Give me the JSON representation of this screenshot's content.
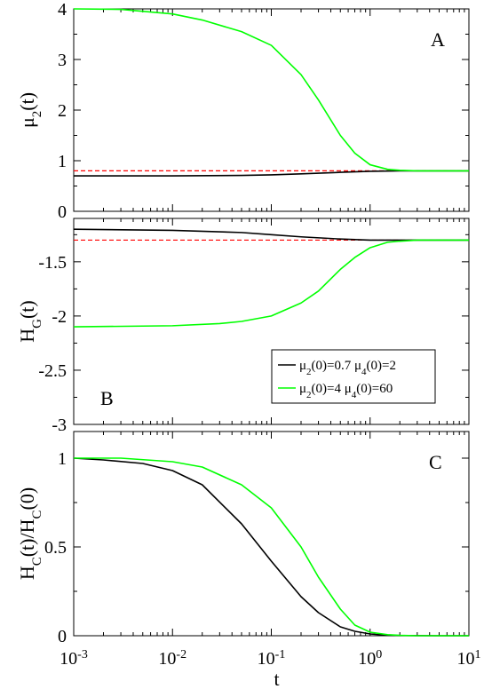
{
  "chart_data": [
    {
      "type": "line",
      "panel_label": "A",
      "ylabel": "μ",
      "ylabel_sub": "2",
      "ylabel_tail": "(t)",
      "xscale": "log",
      "xlim": [
        0.001,
        10
      ],
      "ylim": [
        0,
        4
      ],
      "yticks": [
        0,
        1,
        2,
        3,
        4
      ],
      "ytick_labels": [
        "0",
        "1",
        "2",
        "3",
        "4"
      ],
      "reference_line": {
        "y": 0.8,
        "color": "#ff0000",
        "style": "dashed"
      },
      "series": [
        {
          "color": "#000000",
          "x": [
            0.001,
            0.01,
            0.05,
            0.1,
            0.2,
            0.5,
            1,
            2,
            5,
            10
          ],
          "y": [
            0.7,
            0.7,
            0.71,
            0.72,
            0.74,
            0.77,
            0.79,
            0.8,
            0.8,
            0.8
          ]
        },
        {
          "color": "#00ff00",
          "x": [
            0.001,
            0.003,
            0.01,
            0.02,
            0.05,
            0.1,
            0.2,
            0.3,
            0.5,
            0.7,
            1,
            1.5,
            2,
            3,
            5,
            10
          ],
          "y": [
            4.0,
            3.99,
            3.9,
            3.78,
            3.55,
            3.28,
            2.7,
            2.2,
            1.5,
            1.15,
            0.92,
            0.83,
            0.81,
            0.8,
            0.8,
            0.8
          ]
        }
      ]
    },
    {
      "type": "line",
      "panel_label": "B",
      "ylabel": "H",
      "ylabel_sub": "G",
      "ylabel_tail": "(t)",
      "xscale": "log",
      "xlim": [
        0.001,
        10
      ],
      "ylim": [
        -3,
        -1.1
      ],
      "yticks": [
        -3,
        -2.5,
        -2,
        -1.5
      ],
      "ytick_labels": [
        "-3",
        "-2.5",
        "-2",
        "-1.5"
      ],
      "reference_line": {
        "y": -1.3,
        "color": "#ff0000",
        "style": "dashed"
      },
      "legend": {
        "placement": "lower-right"
      },
      "series": [
        {
          "name": "μ2(0)=0.7  μ4(0)=2",
          "name_parts": [
            "μ",
            "2",
            "(0)=0.7  μ",
            "4",
            "(0)=2"
          ],
          "color": "#000000",
          "x": [
            0.001,
            0.01,
            0.05,
            0.1,
            0.2,
            0.5,
            1,
            2,
            5,
            10
          ],
          "y": [
            -1.2,
            -1.21,
            -1.23,
            -1.25,
            -1.27,
            -1.29,
            -1.3,
            -1.3,
            -1.3,
            -1.3
          ]
        },
        {
          "name": "μ2(0)=4  μ4(0)=60",
          "name_parts": [
            "μ",
            "2",
            "(0)=4  μ",
            "4",
            "(0)=60"
          ],
          "color": "#00ff00",
          "x": [
            0.001,
            0.01,
            0.03,
            0.05,
            0.1,
            0.2,
            0.3,
            0.5,
            0.7,
            1,
            1.5,
            2,
            3,
            5,
            10
          ],
          "y": [
            -2.1,
            -2.09,
            -2.07,
            -2.05,
            -2.0,
            -1.88,
            -1.77,
            -1.57,
            -1.46,
            -1.37,
            -1.32,
            -1.31,
            -1.3,
            -1.3,
            -1.3
          ]
        }
      ]
    },
    {
      "type": "line",
      "panel_label": "C",
      "ylabel": "H",
      "ylabel_sub": "C",
      "ylabel_mid": "(t)/H",
      "ylabel_sub2": "C",
      "ylabel_tail": "(0)",
      "xlabel": "t",
      "xscale": "log",
      "xlim": [
        0.001,
        10
      ],
      "ylim": [
        0,
        1.15
      ],
      "yticks": [
        0,
        0.5,
        1
      ],
      "ytick_labels": [
        "0",
        "0.5",
        "1"
      ],
      "xticks": [
        0.001,
        0.01,
        0.1,
        1,
        10
      ],
      "xtick_labels": [
        {
          "base": "10",
          "exp": "-3"
        },
        {
          "base": "10",
          "exp": "-2"
        },
        {
          "base": "10",
          "exp": "-1"
        },
        {
          "base": "10",
          "exp": "0"
        },
        {
          "base": "10",
          "exp": "1"
        }
      ],
      "series": [
        {
          "color": "#000000",
          "x": [
            0.001,
            0.002,
            0.005,
            0.01,
            0.02,
            0.05,
            0.1,
            0.2,
            0.3,
            0.5,
            0.7,
            1,
            1.5,
            2,
            5,
            10
          ],
          "y": [
            1.0,
            0.99,
            0.97,
            0.93,
            0.85,
            0.63,
            0.42,
            0.22,
            0.13,
            0.05,
            0.025,
            0.01,
            0.003,
            0.001,
            0.0,
            0.0
          ]
        },
        {
          "color": "#00ff00",
          "x": [
            0.001,
            0.003,
            0.01,
            0.02,
            0.05,
            0.1,
            0.2,
            0.3,
            0.5,
            0.7,
            1,
            1.5,
            2,
            3,
            5,
            10
          ],
          "y": [
            1.0,
            1.0,
            0.98,
            0.95,
            0.85,
            0.72,
            0.5,
            0.33,
            0.15,
            0.06,
            0.02,
            0.006,
            0.002,
            0.0,
            0.0,
            0.0
          ]
        }
      ]
    }
  ]
}
